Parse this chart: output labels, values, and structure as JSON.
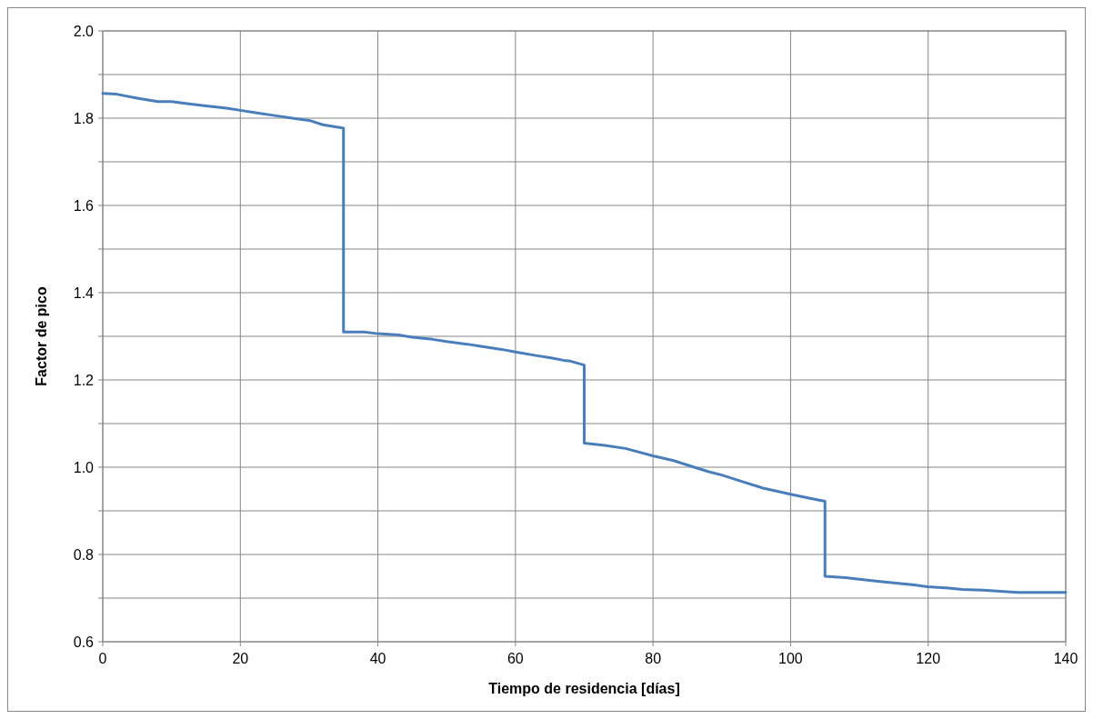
{
  "chart_data": {
    "type": "line",
    "xlabel": "Tiempo de residencia [días]",
    "ylabel": "Factor de pico",
    "xlim": [
      0,
      140
    ],
    "xticks": [
      0,
      20,
      40,
      60,
      80,
      100,
      120,
      140
    ],
    "ylim": [
      0.6,
      2.0
    ],
    "yticks": [
      0.6,
      {
        "value": 0.7,
        "label": null
      },
      0.8,
      {
        "value": 0.9,
        "label": null
      },
      {
        "value": 1,
        "label": "1.0"
      },
      {
        "value": 1.1,
        "label": null
      },
      1.2,
      {
        "value": 1.3,
        "label": null
      },
      1.4,
      {
        "value": 1.5,
        "label": null
      },
      1.6,
      {
        "value": 1.7,
        "label": null
      },
      1.8,
      {
        "value": 1.9,
        "label": null
      },
      {
        "value": 2,
        "label": "2.0"
      }
    ],
    "grid": true,
    "marker": "none",
    "line_style": "solid",
    "series": [
      {
        "color": "#4a7ebb",
        "x": [
          0,
          2,
          5,
          8,
          10,
          12,
          15,
          18,
          20,
          22,
          25,
          28,
          30,
          32,
          35,
          35,
          38,
          40,
          43,
          45,
          48,
          50,
          53,
          55,
          58,
          60,
          63,
          65,
          67,
          68,
          70,
          70,
          73,
          76,
          80,
          83,
          86,
          88,
          90,
          93,
          96,
          100,
          103,
          105,
          105,
          108,
          110,
          113,
          115,
          118,
          120,
          123,
          125,
          128,
          130,
          133,
          135,
          140
        ],
        "values": [
          1.857,
          1.855,
          1.846,
          1.838,
          1.838,
          1.834,
          1.828,
          1.823,
          1.818,
          1.813,
          1.806,
          1.799,
          1.795,
          1.785,
          1.777,
          1.31,
          1.31,
          1.306,
          1.303,
          1.298,
          1.293,
          1.288,
          1.282,
          1.277,
          1.27,
          1.264,
          1.256,
          1.251,
          1.245,
          1.243,
          1.234,
          1.055,
          1.05,
          1.043,
          1.026,
          1.015,
          1.0,
          0.99,
          0.982,
          0.967,
          0.952,
          0.938,
          0.928,
          0.922,
          0.75,
          0.747,
          0.743,
          0.738,
          0.735,
          0.73,
          0.726,
          0.723,
          0.72,
          0.718,
          0.716,
          0.713,
          0.713,
          0.713
        ]
      }
    ]
  }
}
